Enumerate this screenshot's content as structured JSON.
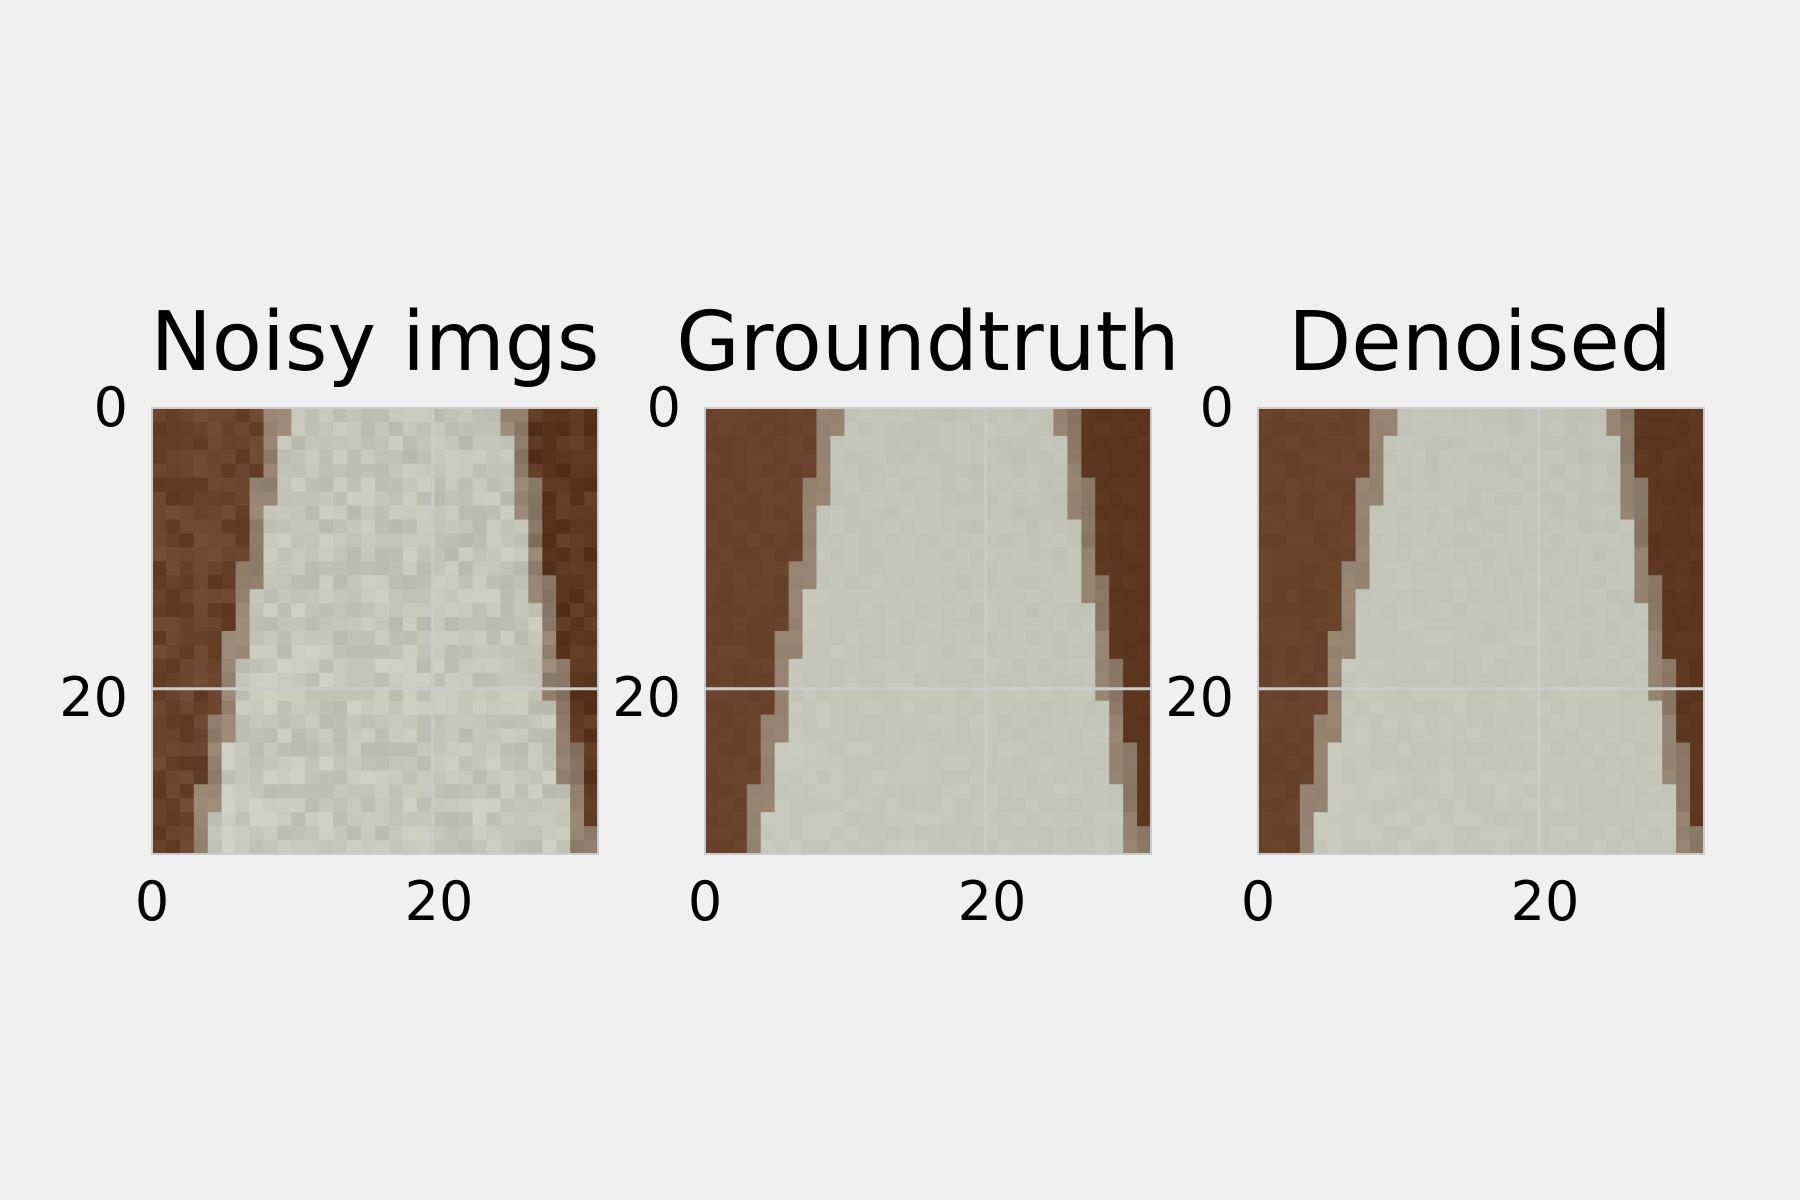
{
  "colors": {
    "background": "#f0f0f0",
    "grid": "#cbcbcb",
    "dark_region": "#68422a",
    "light_region": "#c3c5b8"
  },
  "chart_data": [
    {
      "type": "image",
      "title": "Noisy imgs",
      "image_size": [
        32,
        32
      ],
      "noisy": true,
      "xlim": [
        0,
        31
      ],
      "ylim": [
        0,
        31
      ],
      "xticks": [
        0,
        20
      ],
      "yticks": [
        0,
        20
      ],
      "xtick_labels": [
        "0",
        "20"
      ],
      "ytick_labels": [
        "0",
        "20"
      ],
      "grid": true
    },
    {
      "type": "image",
      "title": "Groundtruth",
      "image_size": [
        32,
        32
      ],
      "noisy": false,
      "xlim": [
        0,
        31
      ],
      "ylim": [
        0,
        31
      ],
      "xticks": [
        0,
        20
      ],
      "yticks": [
        0,
        20
      ],
      "xtick_labels": [
        "0",
        "20"
      ],
      "ytick_labels": [
        "0",
        "20"
      ],
      "grid": true
    },
    {
      "type": "image",
      "title": "Denoised",
      "image_size": [
        32,
        32
      ],
      "noisy": false,
      "xlim": [
        0,
        31
      ],
      "ylim": [
        0,
        31
      ],
      "xticks": [
        0,
        20
      ],
      "yticks": [
        0,
        20
      ],
      "xtick_labels": [
        "0",
        "20"
      ],
      "ytick_labels": [
        "0",
        "20"
      ],
      "grid": true
    }
  ]
}
